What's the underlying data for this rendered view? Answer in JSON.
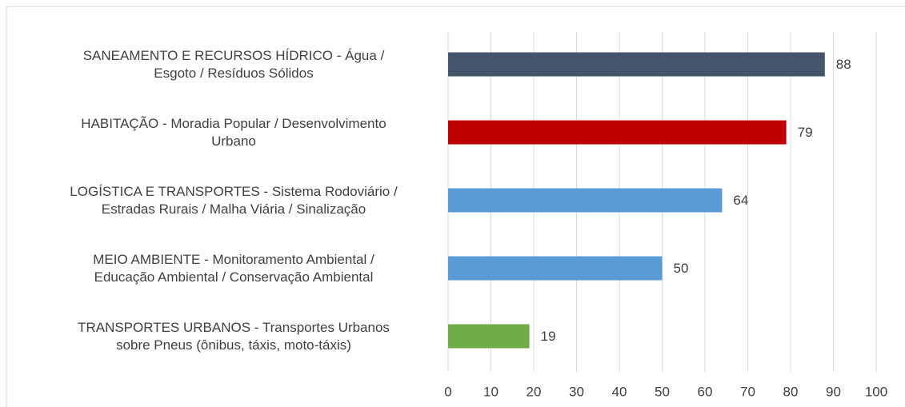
{
  "chart_data": {
    "type": "bar",
    "orientation": "horizontal",
    "categories": [
      "SANEAMENTO E RECURSOS HÍDRICO - Água /\nEsgoto / Resíduos Sólidos",
      "HABITAÇÃO - Moradia Popular / Desenvolvimento\nUrbano",
      "LOGÍSTICA E TRANSPORTES - Sistema Rodoviário /\nEstradas Rurais / Malha Viária / Sinalização",
      "MEIO AMBIENTE - Monitoramento Ambiental /\nEducação Ambiental / Conservação Ambiental",
      "TRANSPORTES URBANOS - Transportes Urbanos\nsobre Pneus (ônibus, táxis, moto-táxis)"
    ],
    "values": [
      88,
      79,
      64,
      50,
      19
    ],
    "colors": [
      "#44546a",
      "#c00000",
      "#5b9bd5",
      "#5b9bd5",
      "#70ad47"
    ],
    "xlim": [
      0,
      100
    ],
    "xticks": [
      0,
      10,
      20,
      30,
      40,
      50,
      60,
      70,
      80,
      90,
      100
    ],
    "grid": true
  }
}
